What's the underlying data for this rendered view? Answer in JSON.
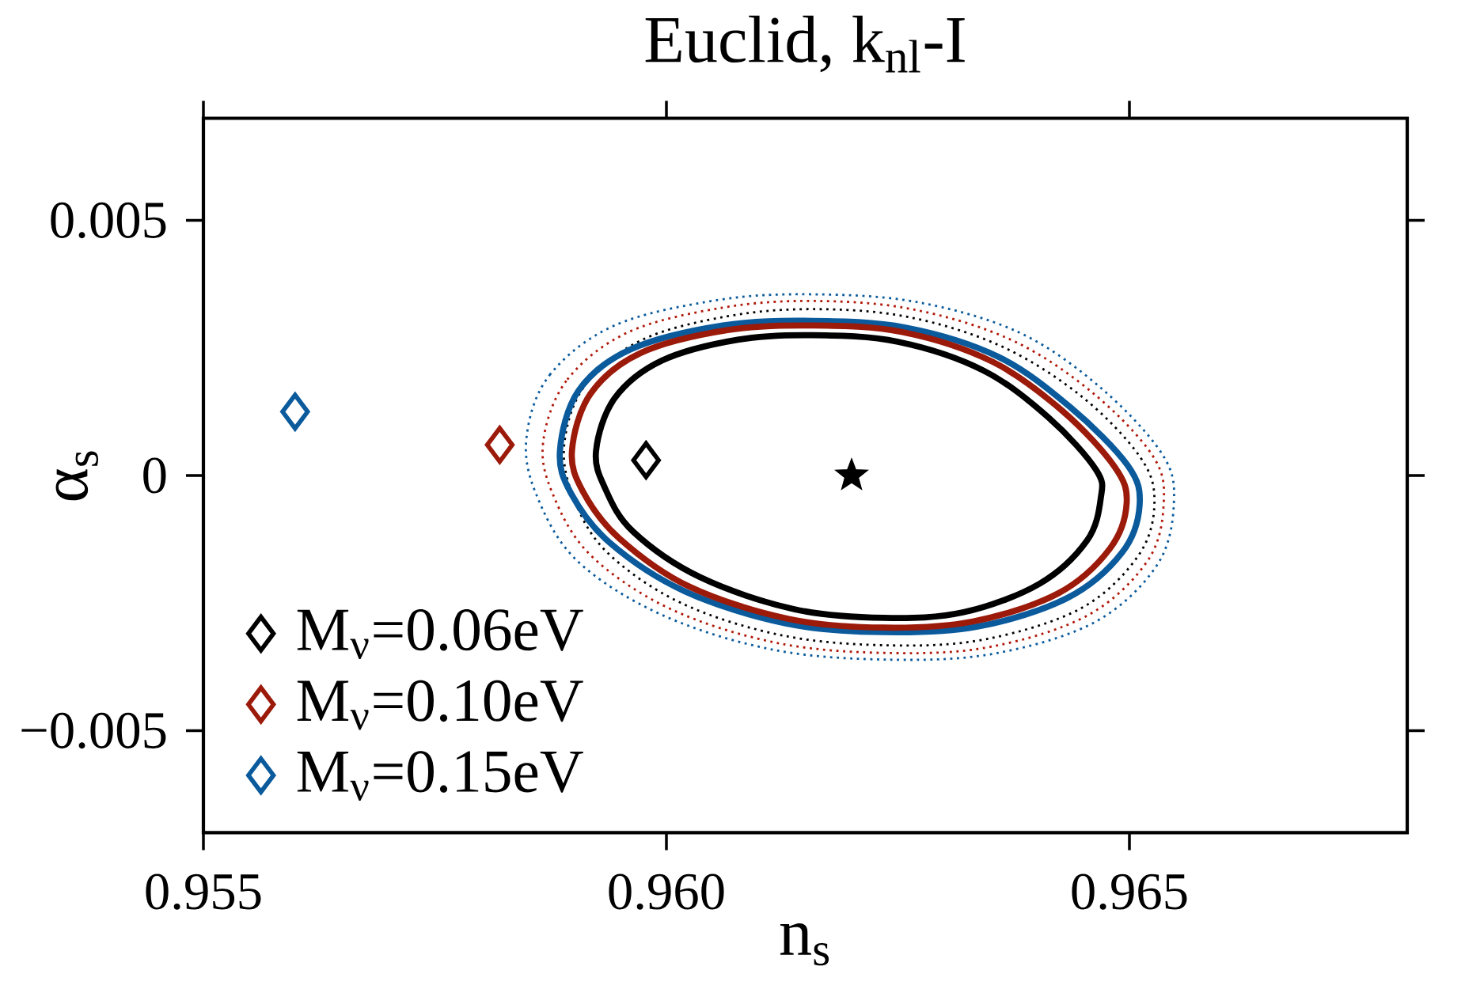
{
  "chart_data": {
    "type": "scatter",
    "title": "Euclid, k$_{nl}$-I",
    "xlabel": "n$_{s}$",
    "ylabel": "α$_{s}$",
    "xlim": [
      0.955,
      0.968
    ],
    "ylim": [
      -0.007,
      0.007
    ],
    "xticks": [
      {
        "value": 0.955,
        "label": "0.955"
      },
      {
        "value": 0.96,
        "label": "0.960"
      },
      {
        "value": 0.965,
        "label": "0.965"
      }
    ],
    "yticks": [
      {
        "value": -0.005,
        "label": "−0.005"
      },
      0,
      {
        "value": 0.005,
        "label": "0.005"
      }
    ],
    "legend": "bottom left",
    "series": [
      {
        "name": "M$_{ν}$=0.06eV",
        "color": "#000000",
        "marker": "diamond",
        "x": [
          0.95978
        ],
        "values": [
          0.0003
        ]
      },
      {
        "name": "M$_{ν}$=0.10eV",
        "color": "#9b1a0a",
        "marker": "diamond",
        "x": [
          0.9582
        ],
        "values": [
          0.0006
        ]
      },
      {
        "name": "M$_{ν}$=0.15eV",
        "color": "#0a5a9c",
        "marker": "diamond",
        "x": [
          0.95599
        ],
        "values": [
          0.00125
        ]
      },
      {
        "color": "#000000",
        "marker": "star",
        "x": [
          0.962
        ],
        "values": [
          0
        ]
      }
    ]
  }
}
